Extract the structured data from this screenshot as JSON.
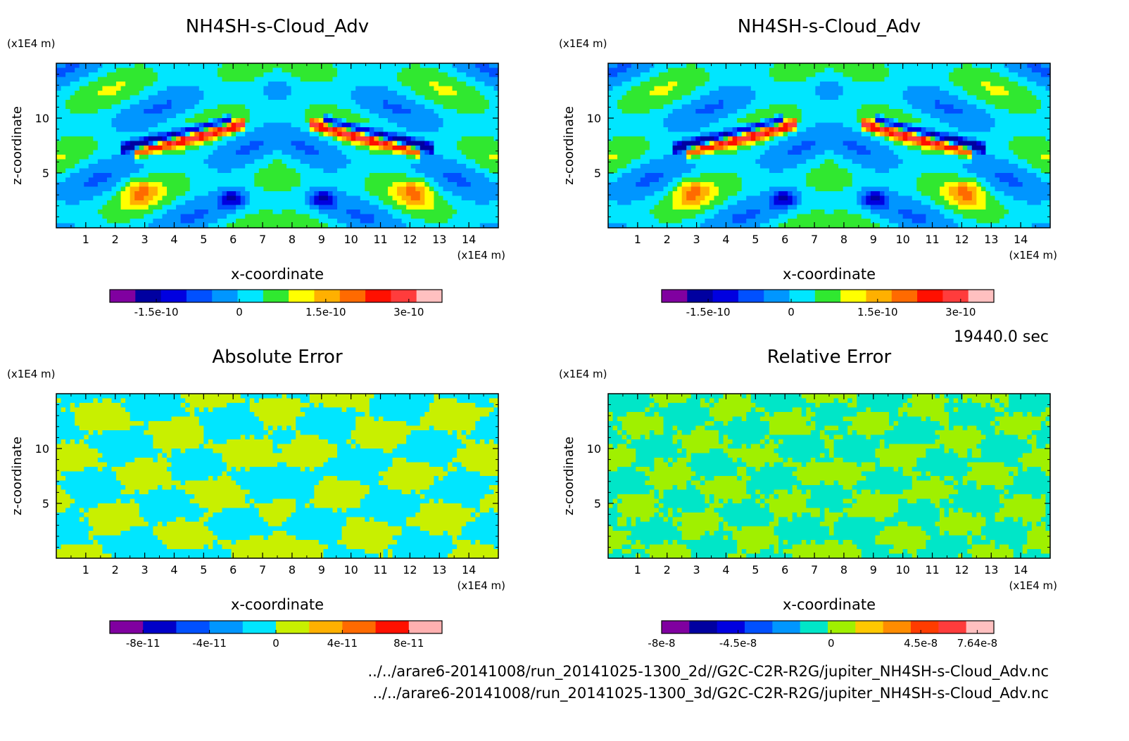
{
  "time_label": "19440.0 sec",
  "files": [
    "../../arare6-20141008/run_20141025-1300_2d//G2C-C2R-R2G/jupiter_NH4SH-s-Cloud_Adv.nc",
    "../../arare6-20141008/run_20141025-1300_3d/G2C-C2R-R2G/jupiter_NH4SH-s-Cloud_Adv.nc"
  ],
  "chart_data": [
    {
      "type": "heatmap",
      "title": "NH4SH-s-Cloud_Adv",
      "xlabel": "x-coordinate",
      "ylabel": "z-coordinate",
      "x_unit": "(x1E4 m)",
      "y_unit": "(x1E4 m)",
      "xlim": [
        0,
        15
      ],
      "ylim": [
        0,
        15
      ],
      "x_ticks": [
        "1",
        "2",
        "3",
        "4",
        "5",
        "6",
        "7",
        "8",
        "9",
        "10",
        "11",
        "12",
        "13",
        "14"
      ],
      "y_ticks": [
        "5",
        "10"
      ],
      "colorbar_labels": [
        "-1.5e-10",
        "0",
        "1.5e-10",
        "3e-10"
      ],
      "colorbar_colors": [
        "#8000a0",
        "#0000a0",
        "#0000e0",
        "#0050ff",
        "#0096ff",
        "#00e6ff",
        "#30e830",
        "#ffff00",
        "#ffb000",
        "#ff6a00",
        "#ff1000",
        "#ff3c3c",
        "#ffc0c0"
      ],
      "pattern": "field"
    },
    {
      "type": "heatmap",
      "title": "NH4SH-s-Cloud_Adv",
      "xlabel": "x-coordinate",
      "ylabel": "z-coordinate",
      "x_unit": "(x1E4 m)",
      "y_unit": "(x1E4 m)",
      "xlim": [
        0,
        15
      ],
      "ylim": [
        0,
        15
      ],
      "x_ticks": [
        "1",
        "2",
        "3",
        "4",
        "5",
        "6",
        "7",
        "8",
        "9",
        "10",
        "11",
        "12",
        "13",
        "14"
      ],
      "y_ticks": [
        "5",
        "10"
      ],
      "colorbar_labels": [
        "-1.5e-10",
        "0",
        "1.5e-10",
        "3e-10"
      ],
      "colorbar_colors": [
        "#8000a0",
        "#0000a0",
        "#0000e0",
        "#0050ff",
        "#0096ff",
        "#00e6ff",
        "#30e830",
        "#ffff00",
        "#ffb000",
        "#ff6a00",
        "#ff1000",
        "#ff3c3c",
        "#ffc0c0"
      ],
      "pattern": "field"
    },
    {
      "type": "heatmap",
      "title": "Absolute Error",
      "xlabel": "x-coordinate",
      "ylabel": "z-coordinate",
      "x_unit": "(x1E4 m)",
      "y_unit": "(x1E4 m)",
      "xlim": [
        0,
        15
      ],
      "ylim": [
        0,
        15
      ],
      "x_ticks": [
        "1",
        "2",
        "3",
        "4",
        "5",
        "6",
        "7",
        "8",
        "9",
        "10",
        "11",
        "12",
        "13",
        "14"
      ],
      "y_ticks": [
        "5",
        "10"
      ],
      "colorbar_labels": [
        "-8e-11",
        "-4e-11",
        "0",
        "4e-11",
        "8e-11"
      ],
      "colorbar_colors": [
        "#8000a0",
        "#0000c8",
        "#0050ff",
        "#0096ff",
        "#00e6ff",
        "#c8f000",
        "#ffb000",
        "#ff6a00",
        "#ff1000",
        "#ffb0b0"
      ],
      "pattern": "abs"
    },
    {
      "type": "heatmap",
      "title": "Relative Error",
      "xlabel": "x-coordinate",
      "ylabel": "z-coordinate",
      "x_unit": "(x1E4 m)",
      "y_unit": "(x1E4 m)",
      "xlim": [
        0,
        15
      ],
      "ylim": [
        0,
        15
      ],
      "x_ticks": [
        "1",
        "2",
        "3",
        "4",
        "5",
        "6",
        "7",
        "8",
        "9",
        "10",
        "11",
        "12",
        "13",
        "14"
      ],
      "y_ticks": [
        "5",
        "10"
      ],
      "colorbar_labels": [
        "-8e-8",
        "-4.5e-8",
        "0",
        "4.5e-8",
        "7.64e-8"
      ],
      "colorbar_colors": [
        "#8000a0",
        "#0000a0",
        "#0000e0",
        "#0050ff",
        "#0096ff",
        "#00e6c8",
        "#a0f000",
        "#ffc800",
        "#ff8c00",
        "#ff3c00",
        "#ff3c3c",
        "#ffc0c0"
      ],
      "pattern": "rel"
    }
  ]
}
